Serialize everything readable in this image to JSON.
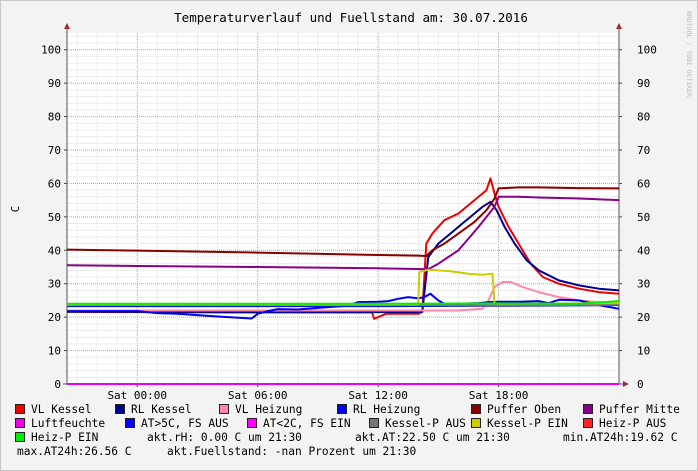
{
  "chart_data": {
    "type": "line",
    "title": "Temperaturverlauf und Fuellstand am: 30.07.2016",
    "ylabel": "C",
    "watermark": "RRDTOOL / TOBI OETIKER",
    "ylim": [
      0,
      105
    ],
    "y_ticks": [
      0,
      10,
      20,
      30,
      40,
      50,
      60,
      70,
      80,
      90,
      100
    ],
    "x_range_hours": [
      -3.5,
      24.0
    ],
    "x_ticks": [
      {
        "h": 0,
        "label": "Sat 00:00"
      },
      {
        "h": 6,
        "label": "Sat 06:00"
      },
      {
        "h": 12,
        "label": "Sat 12:00"
      },
      {
        "h": 18,
        "label": "Sat 18:00"
      }
    ],
    "grid": true,
    "series": [
      {
        "name": "VL Kessel",
        "color": "#ee0000",
        "points": [
          [
            -3.5,
            21.6
          ],
          [
            4.5,
            21.4
          ],
          [
            9,
            21.4
          ],
          [
            11.7,
            21.4
          ],
          [
            11.8,
            19.5
          ],
          [
            12.4,
            21
          ],
          [
            14,
            21
          ],
          [
            14.2,
            21.5
          ],
          [
            14.4,
            42
          ],
          [
            14.7,
            45
          ],
          [
            15.3,
            49
          ],
          [
            16,
            51
          ],
          [
            16.8,
            55
          ],
          [
            17.4,
            58
          ],
          [
            17.6,
            61.5
          ],
          [
            17.8,
            57
          ],
          [
            18,
            53
          ],
          [
            18.5,
            47
          ],
          [
            19,
            42
          ],
          [
            19.6,
            36
          ],
          [
            20.2,
            32
          ],
          [
            21,
            30
          ],
          [
            22,
            28.5
          ],
          [
            23,
            27.5
          ],
          [
            24,
            27
          ]
        ]
      },
      {
        "name": "RL Kessel",
        "color": "#000088",
        "points": [
          [
            -3.5,
            21.6
          ],
          [
            9,
            21.5
          ],
          [
            14,
            21.5
          ],
          [
            14.2,
            21.6
          ],
          [
            14.5,
            38
          ],
          [
            15,
            42
          ],
          [
            15.6,
            45
          ],
          [
            16.2,
            48
          ],
          [
            16.8,
            51
          ],
          [
            17.2,
            53
          ],
          [
            17.6,
            54.5
          ],
          [
            17.9,
            52
          ],
          [
            18.3,
            47
          ],
          [
            18.8,
            42
          ],
          [
            19.4,
            37
          ],
          [
            20,
            34
          ],
          [
            21,
            31
          ],
          [
            22,
            29.5
          ],
          [
            23,
            28.5
          ],
          [
            24,
            28
          ]
        ]
      },
      {
        "name": "VL Heizung",
        "color": "#ff88aa",
        "points": [
          [
            -3.5,
            22
          ],
          [
            14,
            22
          ],
          [
            16,
            22
          ],
          [
            17.2,
            22.5
          ],
          [
            17.5,
            25
          ],
          [
            17.8,
            29
          ],
          [
            18.2,
            30.5
          ],
          [
            18.6,
            30.5
          ],
          [
            19.2,
            29
          ],
          [
            20,
            27.5
          ],
          [
            21,
            26
          ],
          [
            22,
            25
          ],
          [
            23,
            24.5
          ],
          [
            24,
            24
          ]
        ]
      },
      {
        "name": "RL Heizung",
        "color": "#0000ee",
        "points": [
          [
            -3.5,
            21.8
          ],
          [
            0,
            21.8
          ],
          [
            1,
            21.2
          ],
          [
            2,
            21
          ],
          [
            4,
            20.2
          ],
          [
            5.7,
            19.6
          ],
          [
            6,
            21
          ],
          [
            6.5,
            21.8
          ],
          [
            7,
            22.4
          ],
          [
            8,
            22.3
          ],
          [
            9.5,
            23
          ],
          [
            10.5,
            23.4
          ],
          [
            11,
            24.5
          ],
          [
            12,
            24.6
          ],
          [
            12.5,
            24.8
          ],
          [
            13,
            25.5
          ],
          [
            13.5,
            26
          ],
          [
            14,
            25.6
          ],
          [
            14.3,
            26
          ],
          [
            14.6,
            27
          ],
          [
            15,
            25
          ],
          [
            15.3,
            24
          ],
          [
            15.5,
            23.8
          ],
          [
            16,
            24
          ],
          [
            17,
            24.2
          ],
          [
            17.5,
            24.5
          ],
          [
            18,
            24.6
          ],
          [
            19,
            24.6
          ],
          [
            20,
            24.8
          ],
          [
            20.5,
            24.2
          ],
          [
            21,
            25.2
          ],
          [
            22,
            25
          ],
          [
            23,
            23.6
          ],
          [
            24,
            22.5
          ]
        ]
      },
      {
        "name": "Puffer Oben",
        "color": "#880000",
        "points": [
          [
            -3.5,
            40.2
          ],
          [
            0,
            39.9
          ],
          [
            6,
            39.3
          ],
          [
            12,
            38.6
          ],
          [
            14,
            38.4
          ],
          [
            14.4,
            38.3
          ],
          [
            14.7,
            40
          ],
          [
            15.3,
            42
          ],
          [
            16,
            45
          ],
          [
            16.8,
            48.5
          ],
          [
            17.4,
            52
          ],
          [
            17.8,
            55.5
          ],
          [
            18,
            58.5
          ],
          [
            19,
            58.8
          ],
          [
            20,
            58.8
          ],
          [
            22,
            58.6
          ],
          [
            24,
            58.5
          ]
        ]
      },
      {
        "name": "Puffer Mitte",
        "color": "#880088",
        "points": [
          [
            -3.5,
            35.5
          ],
          [
            0,
            35.3
          ],
          [
            6,
            35
          ],
          [
            12,
            34.6
          ],
          [
            14,
            34.4
          ],
          [
            14.5,
            34.3
          ],
          [
            15,
            36
          ],
          [
            15.5,
            38
          ],
          [
            16,
            40
          ],
          [
            16.5,
            43.5
          ],
          [
            17,
            47
          ],
          [
            17.4,
            50
          ],
          [
            17.8,
            53
          ],
          [
            18,
            56
          ],
          [
            19,
            56
          ],
          [
            20,
            55.8
          ],
          [
            22,
            55.5
          ],
          [
            24,
            55
          ]
        ]
      },
      {
        "name": "Luftfeuchte",
        "color": "#ee00ee",
        "points": [
          [
            -3.5,
            0
          ],
          [
            24,
            0
          ]
        ]
      },
      {
        "name": "AT>5C, FS AUS",
        "color": "#0000ff",
        "points": [
          [
            -3.5,
            23.3
          ],
          [
            6,
            23.3
          ],
          [
            12,
            23.3
          ],
          [
            18,
            23.4
          ],
          [
            24,
            23.6
          ]
        ]
      },
      {
        "name": "AT<2C, FS EIN",
        "color": "#ff00ff",
        "points": []
      },
      {
        "name": "Kessel-P AUS",
        "color": "#777777",
        "points": [
          [
            -3.5,
            23.6
          ],
          [
            10,
            23.6
          ],
          [
            14,
            23.6
          ],
          [
            17,
            23.5
          ],
          [
            20,
            23.6
          ],
          [
            24,
            23.7
          ]
        ]
      },
      {
        "name": "Kessel-P EIN",
        "color": "#cccc00",
        "points": [
          [
            -3.5,
            23.8
          ],
          [
            14,
            23.8
          ],
          [
            14.05,
            33.5
          ],
          [
            14.5,
            34.2
          ],
          [
            15.5,
            33.8
          ],
          [
            16.5,
            33
          ],
          [
            17.2,
            32.7
          ],
          [
            17.7,
            33
          ],
          [
            17.8,
            24.2
          ],
          [
            18,
            24
          ],
          [
            24,
            24.2
          ]
        ]
      },
      {
        "name": "Heiz-P AUS",
        "color": "#ff2222",
        "points": []
      },
      {
        "name": "Heiz-P EIN",
        "color": "#00ee00",
        "points": [
          [
            -3.5,
            24
          ],
          [
            6,
            24
          ],
          [
            12,
            24
          ],
          [
            18,
            24.1
          ],
          [
            22,
            24
          ],
          [
            24,
            24.8
          ]
        ]
      }
    ]
  },
  "legend_labels": {
    "vl_kessel": "VL Kessel",
    "rl_kessel": "RL Kessel",
    "vl_heizung": "VL Heizung",
    "rl_heizung": "RL Heizung",
    "puffer_oben": "Puffer Oben",
    "puffer_mitte": "Puffer Mitte",
    "luftfeuchte": "Luftfeuchte",
    "at_gt_5c": "AT>5C, FS AUS",
    "at_lt_2c": "AT<2C, FS EIN",
    "kessel_p_aus": "Kessel-P AUS",
    "kessel_p_ein": "Kessel-P EIN",
    "heiz_p_aus": "Heiz-P AUS",
    "heiz_p_ein": "Heiz-P EIN"
  },
  "info": {
    "akt_rh": "akt.rH: 0.00 C um 21:30",
    "akt_at": "akt.AT:22.50 C um 21:30",
    "min_at24h": "min.AT24h:19.62 C",
    "max_at24h": "max.AT24h:26.56 C",
    "akt_fuellstand": "akt.Fuellstand: -nan Prozent um 21:30"
  }
}
